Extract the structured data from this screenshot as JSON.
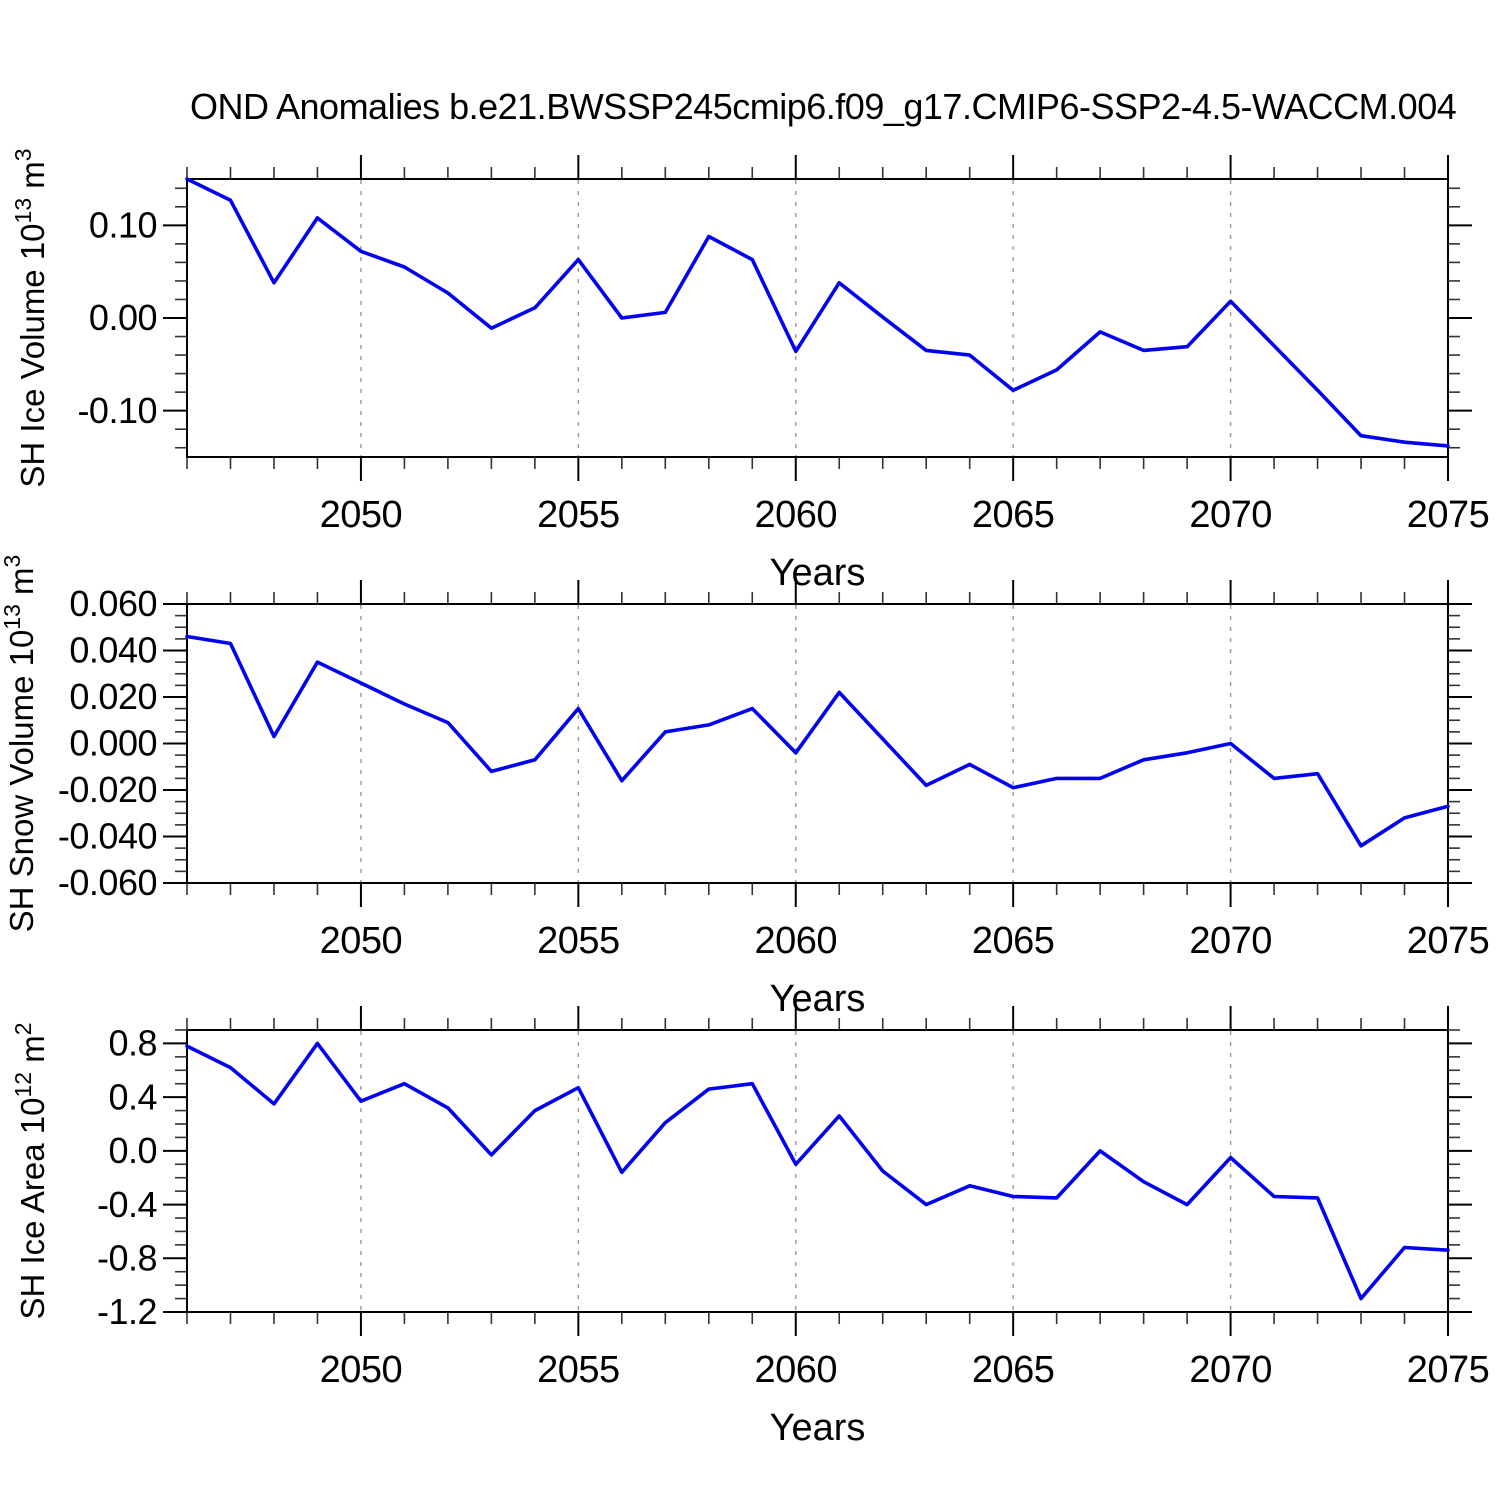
{
  "title": "OND Anomalies b.e21.BWSSP245cmip6.f09_g17.CMIP6-SSP2-4.5-WACCM.004",
  "colors": {
    "line": "#0202f0",
    "frame": "#000000",
    "grid": "#999999",
    "minor_tick": "#333333"
  },
  "x_axis": {
    "label": "Years",
    "start": 2046,
    "end": 2075,
    "major_ticks": [
      2050,
      2055,
      2060,
      2065,
      2070,
      2075
    ],
    "grid_years": [
      2050,
      2055,
      2060,
      2065,
      2070
    ],
    "minor_step": 1
  },
  "chart_data": [
    {
      "type": "line",
      "ylabel": "SH Ice Volume 10^13 m^3",
      "ylabel_parts": [
        "SH Ice Volume 10",
        "13",
        " m",
        "3"
      ],
      "xlabel": "Years",
      "ylim": [
        -0.15,
        0.15
      ],
      "ytick_labels": [
        "0.10",
        "0.00",
        "-0.10"
      ],
      "ytick_values": [
        0.1,
        0.0,
        -0.1
      ],
      "yminor_step": 0.02,
      "legend": "none",
      "grid": "vertical-dashed",
      "x": [
        2046,
        2047,
        2048,
        2049,
        2050,
        2051,
        2052,
        2053,
        2054,
        2055,
        2056,
        2057,
        2058,
        2059,
        2060,
        2061,
        2062,
        2063,
        2064,
        2065,
        2066,
        2067,
        2068,
        2069,
        2070,
        2071,
        2072,
        2073,
        2074,
        2075
      ],
      "values": [
        0.15,
        0.127,
        0.038,
        0.108,
        0.072,
        0.055,
        0.027,
        -0.011,
        0.011,
        0.063,
        0.0,
        0.006,
        0.088,
        0.063,
        -0.036,
        0.038,
        0.001,
        -0.035,
        -0.04,
        -0.078,
        -0.056,
        -0.015,
        -0.035,
        -0.031,
        0.018,
        -0.03,
        -0.078,
        -0.127,
        -0.134,
        -0.138
      ]
    },
    {
      "type": "line",
      "ylabel": "SH Snow Volume 10^13 m^3",
      "ylabel_parts": [
        "SH Snow Volume 10",
        "13",
        " m",
        "3"
      ],
      "xlabel": "Years",
      "ylim": [
        -0.06,
        0.06
      ],
      "ytick_labels": [
        "0.060",
        "0.040",
        "0.020",
        "0.000",
        "-0.020",
        "-0.040",
        "-0.060"
      ],
      "ytick_values": [
        0.06,
        0.04,
        0.02,
        0.0,
        -0.02,
        -0.04,
        -0.06
      ],
      "yminor_step": 0.005,
      "legend": "none",
      "grid": "vertical-dashed",
      "x": [
        2046,
        2047,
        2048,
        2049,
        2050,
        2051,
        2052,
        2053,
        2054,
        2055,
        2056,
        2057,
        2058,
        2059,
        2060,
        2061,
        2062,
        2063,
        2064,
        2065,
        2066,
        2067,
        2068,
        2069,
        2070,
        2071,
        2072,
        2073,
        2074,
        2075
      ],
      "values": [
        0.046,
        0.043,
        0.003,
        0.035,
        0.026,
        0.017,
        0.009,
        -0.012,
        -0.007,
        0.015,
        -0.016,
        0.005,
        0.008,
        0.015,
        -0.004,
        0.022,
        0.002,
        -0.018,
        -0.009,
        -0.019,
        -0.015,
        -0.015,
        -0.007,
        -0.004,
        0.0,
        -0.015,
        -0.013,
        -0.044,
        -0.032,
        -0.027
      ]
    },
    {
      "type": "line",
      "ylabel": "SH Ice Area 10^12 m^2",
      "ylabel_parts": [
        "SH Ice Area 10",
        "12",
        " m",
        "2"
      ],
      "xlabel": "Years",
      "ylim": [
        -1.2,
        0.9
      ],
      "ytick_labels": [
        "0.8",
        "0.4",
        "0.0",
        "-0.4",
        "-0.8",
        "-1.2"
      ],
      "ytick_values": [
        0.8,
        0.4,
        0.0,
        -0.4,
        -0.8,
        -1.2
      ],
      "yminor_step": 0.1,
      "legend": "none",
      "grid": "vertical-dashed",
      "x": [
        2046,
        2047,
        2048,
        2049,
        2050,
        2051,
        2052,
        2053,
        2054,
        2055,
        2056,
        2057,
        2058,
        2059,
        2060,
        2061,
        2062,
        2063,
        2064,
        2065,
        2066,
        2067,
        2068,
        2069,
        2070,
        2071,
        2072,
        2073,
        2074,
        2075
      ],
      "values": [
        0.78,
        0.62,
        0.35,
        0.8,
        0.37,
        0.5,
        0.32,
        -0.03,
        0.3,
        0.47,
        -0.16,
        0.21,
        0.46,
        0.5,
        -0.1,
        0.26,
        -0.15,
        -0.4,
        -0.26,
        -0.34,
        -0.35,
        0.0,
        -0.23,
        -0.4,
        -0.05,
        -0.34,
        -0.35,
        -1.1,
        -0.72,
        -0.74
      ]
    }
  ]
}
